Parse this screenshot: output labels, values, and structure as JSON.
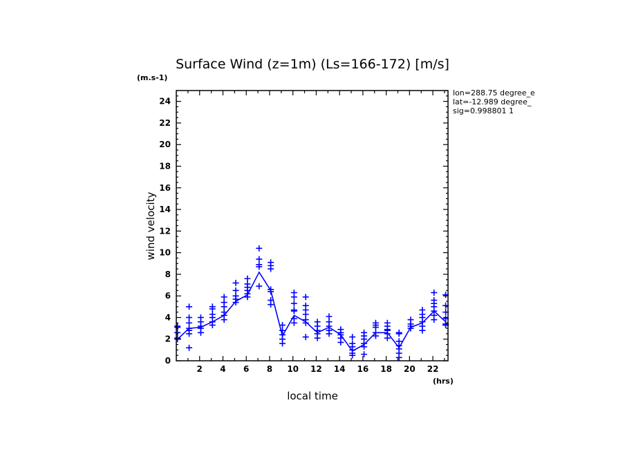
{
  "chart_data": {
    "type": "line",
    "title": "Surface Wind (z=1m) (Ls=166-172) [m/s]",
    "y_unit": "(m.s-1)",
    "x_unit": "(hrs)",
    "xlabel": "local time",
    "ylabel": "wind velocity",
    "info_lines": [
      "lon=288.75 degree_e",
      "lat=-12.989 degree_",
      "sig=0.998801 1"
    ],
    "xlim": [
      0,
      23.3
    ],
    "ylim": [
      0,
      25
    ],
    "x_ticks": [
      2,
      4,
      6,
      8,
      10,
      12,
      14,
      16,
      18,
      20,
      22
    ],
    "y_ticks": [
      0,
      2,
      4,
      6,
      8,
      10,
      12,
      14,
      16,
      18,
      20,
      22,
      24
    ],
    "color": "#0000ff",
    "series": [
      {
        "kind": "mean-line",
        "x": [
          0.1,
          1.1,
          2.1,
          3.1,
          4.1,
          5.1,
          6.1,
          7.1,
          8.1,
          9.1,
          10.1,
          11.1,
          12.1,
          13.1,
          14.1,
          15.1,
          16.1,
          17.1,
          18.1,
          19.1,
          20.1,
          21.1,
          22.1,
          23.1
        ],
        "y": [
          2.0,
          3.0,
          3.1,
          3.6,
          4.2,
          5.5,
          6.1,
          8.2,
          6.5,
          2.3,
          4.2,
          3.6,
          2.6,
          3.1,
          2.4,
          0.9,
          1.5,
          2.6,
          2.6,
          1.2,
          3.1,
          3.5,
          4.6,
          3.6
        ]
      },
      {
        "kind": "daily-samples",
        "x": [
          0.1,
          1.1,
          2.1,
          3.1,
          4.1,
          5.1,
          6.1,
          7.1,
          8.1,
          9.1,
          10.1,
          11.1,
          12.1,
          13.1,
          14.1,
          15.1,
          16.1,
          17.1,
          18.1,
          19.1,
          20.1,
          21.1,
          22.1,
          23.1
        ],
        "samples": [
          [
            2.0,
            2.1,
            2.6,
            3.1,
            3.2
          ],
          [
            1.2,
            2.5,
            2.8,
            3.0,
            3.5,
            4.0,
            5.0
          ],
          [
            2.6,
            3.0,
            3.2,
            3.6,
            4.0
          ],
          [
            3.3,
            3.6,
            4.0,
            4.3,
            4.8,
            5.0
          ],
          [
            3.8,
            4.2,
            4.5,
            5.0,
            5.4,
            5.9
          ],
          [
            5.4,
            5.7,
            6.0,
            6.5,
            7.2
          ],
          [
            5.9,
            6.2,
            6.5,
            6.8,
            7.1,
            7.6
          ],
          [
            6.9,
            8.7,
            8.9,
            9.4,
            10.4
          ],
          [
            5.2,
            5.6,
            6.4,
            6.6,
            8.5,
            8.8,
            9.1
          ],
          [
            1.6,
            2.0,
            2.4,
            2.8,
            3.3
          ],
          [
            3.5,
            3.9,
            4.6,
            4.7,
            5.3,
            5.9,
            6.3
          ],
          [
            2.2,
            3.5,
            3.8,
            4.3,
            4.7,
            5.1,
            5.9
          ],
          [
            2.1,
            2.5,
            2.8,
            3.2,
            3.6
          ],
          [
            2.5,
            2.8,
            3.2,
            3.6,
            4.1
          ],
          [
            1.7,
            2.1,
            2.4,
            2.6,
            2.9
          ],
          [
            0.5,
            0.7,
            1.0,
            1.3,
            1.6,
            2.2
          ],
          [
            0.6,
            1.3,
            1.6,
            2.0,
            2.3,
            2.6
          ],
          [
            2.3,
            2.6,
            3.1,
            3.3,
            3.5
          ],
          [
            2.1,
            2.5,
            2.8,
            2.9,
            3.2,
            3.5
          ],
          [
            0.3,
            0.7,
            1.1,
            1.4,
            1.8,
            2.5,
            2.6
          ],
          [
            3.0,
            3.2,
            3.4,
            3.8
          ],
          [
            2.8,
            3.2,
            3.6,
            4.0,
            4.3,
            4.7
          ],
          [
            3.8,
            4.2,
            4.6,
            5.0,
            5.3,
            5.6,
            6.3
          ],
          [
            3.3,
            3.4,
            3.9,
            4.5,
            5.1,
            6.1
          ]
        ]
      }
    ]
  }
}
